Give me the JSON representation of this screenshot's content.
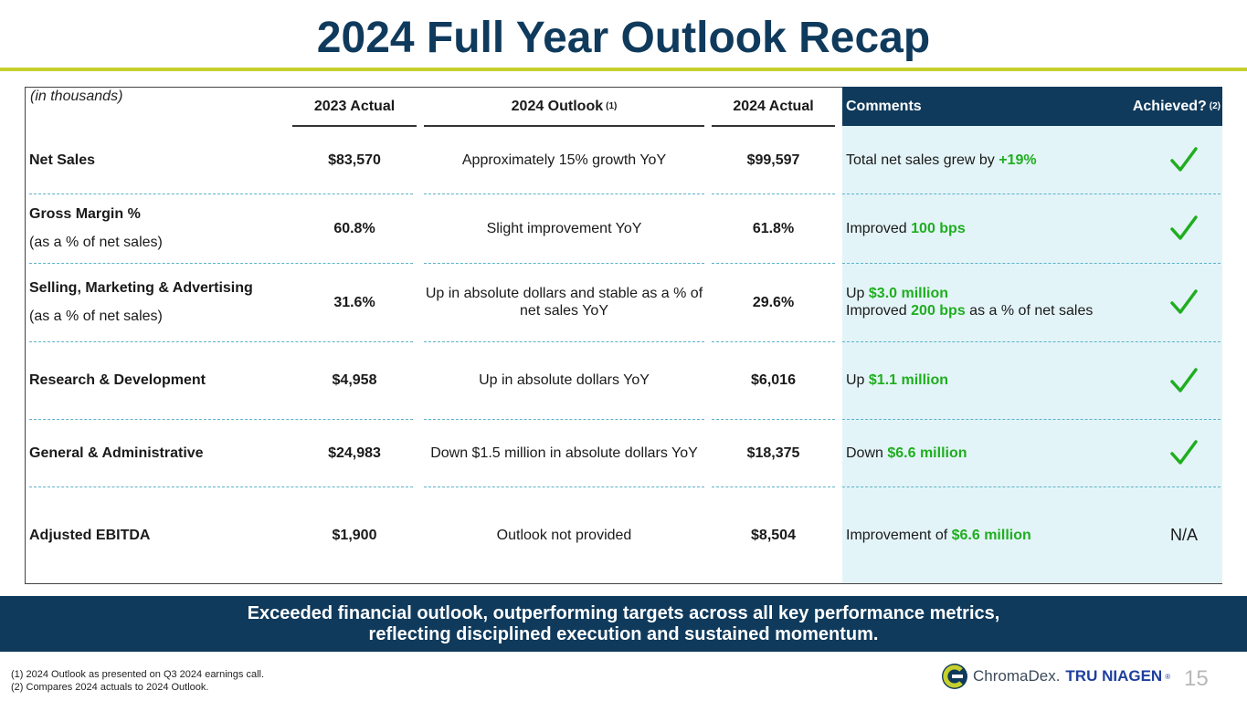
{
  "title": "2024 Full Year Outlook Recap",
  "table": {
    "unit_note": "(in thousands)",
    "headers": {
      "col_2023": "2023 Actual",
      "col_outlook": "2024 Outlook",
      "col_outlook_sup": "(1)",
      "col_2024": "2024 Actual",
      "col_comments": "Comments",
      "col_achieved": "Achieved?",
      "col_achieved_sup": "(2)"
    },
    "rows": [
      {
        "label": "Net Sales",
        "sub": "",
        "a2023": "$83,570",
        "outlook": "Approximately 15% growth YoY",
        "a2024": "$99,597",
        "c1_pre": "Total net sales grew by ",
        "c1_hl": "+19%",
        "c1_post": "",
        "c2_pre": "",
        "c2_hl": "",
        "c2_post": "",
        "achieved": "check"
      },
      {
        "label": "Gross Margin %",
        "sub": "(as a % of net sales)",
        "a2023": "60.8%",
        "outlook": "Slight improvement YoY",
        "a2024": "61.8%",
        "c1_pre": "Improved ",
        "c1_hl": "100 bps",
        "c1_post": "",
        "c2_pre": "",
        "c2_hl": "",
        "c2_post": "",
        "achieved": "check"
      },
      {
        "label": "Selling, Marketing & Advertising",
        "sub": "(as a % of net sales)",
        "a2023": "31.6%",
        "outlook": "Up in absolute dollars and stable as a % of net sales YoY",
        "a2024": "29.6%",
        "c1_pre": "Up ",
        "c1_hl": "$3.0 million",
        "c1_post": "",
        "c2_pre": "Improved ",
        "c2_hl": "200 bps",
        "c2_post": " as a % of net sales",
        "achieved": "check"
      },
      {
        "label": "Research & Development",
        "sub": "",
        "a2023": "$4,958",
        "outlook": "Up in absolute dollars YoY",
        "a2024": "$6,016",
        "c1_pre": "Up ",
        "c1_hl": "$1.1 million",
        "c1_post": "",
        "c2_pre": "",
        "c2_hl": "",
        "c2_post": "",
        "achieved": "check"
      },
      {
        "label": "General & Administrative",
        "sub": "",
        "a2023": "$24,983",
        "outlook": "Down $1.5 million in absolute dollars YoY",
        "a2024": "$18,375",
        "c1_pre": "Down ",
        "c1_hl": "$6.6 million",
        "c1_post": "",
        "c2_pre": "",
        "c2_hl": "",
        "c2_post": "",
        "achieved": "check"
      },
      {
        "label": "Adjusted EBITDA",
        "sub": "",
        "a2023": "$1,900",
        "outlook": "Outlook not provided",
        "a2024": "$8,504",
        "c1_pre": "Improvement of ",
        "c1_hl": "$6.6 million",
        "c1_post": "",
        "c2_pre": "",
        "c2_hl": "",
        "c2_post": "",
        "achieved": "N/A"
      }
    ]
  },
  "banner": {
    "line1": "Exceeded financial outlook, outperforming targets across all key performance metrics,",
    "line2": "reflecting disciplined execution and sustained momentum."
  },
  "footnotes": [
    "(1)   2024 Outlook as presented on Q3 2024 earnings call.",
    "(2)   Compares 2024 actuals to 2024 Outlook."
  ],
  "logo": {
    "brand1": "ChromaDex.",
    "brand2": "TRU NIAGEN",
    "brand2_mark": "®"
  },
  "page_number": "15",
  "colors": {
    "navy": "#0f3a5c",
    "accent_rule": "#c6cf2c",
    "highlight_green": "#1fae1f",
    "comments_bg": "#e3f4f8"
  }
}
